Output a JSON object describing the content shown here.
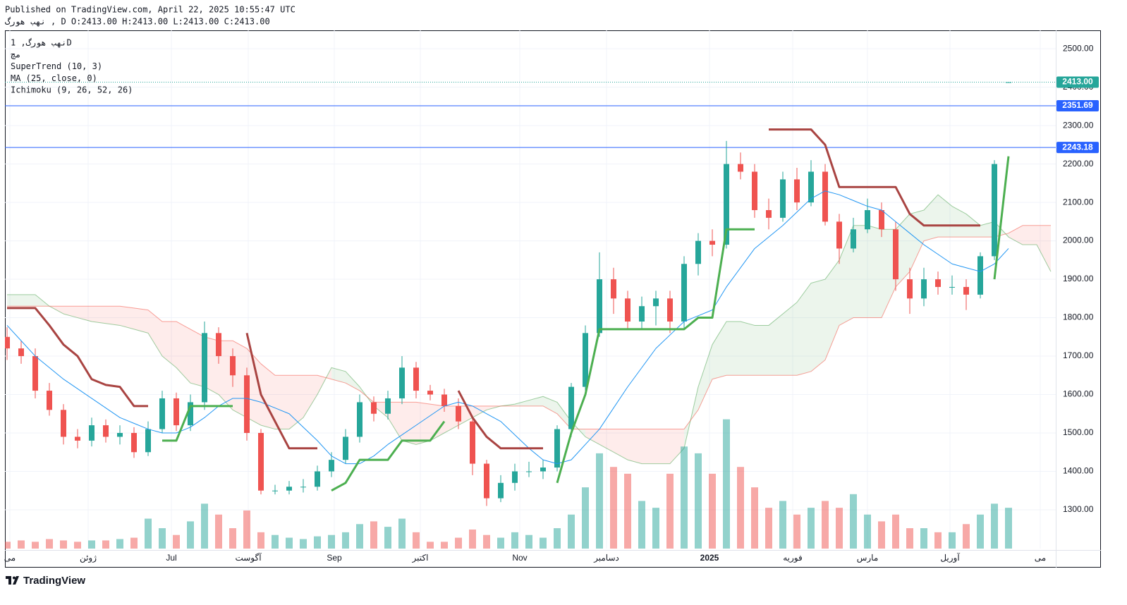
{
  "chart_data": {
    "type": "candlestick",
    "published": "Published on TradingView.com, April 22, 2025 10:55:47 UTC",
    "ohlc_line": "نهب هورگ  ,  D O:2413.00 H:2413.00 L:2413.00 C:2413.00",
    "legend": [
      "نهب هورگ, 1D",
      "مچ",
      "SuperTrend (10, 3)",
      "MA (25, close, 0)",
      "Ichimoku (9, 26, 52, 26)"
    ],
    "footer": "TradingView",
    "xlim": [
      -0.15,
      74.35
    ],
    "ylim": [
      1199,
      2548
    ],
    "volume_lim": [
      0,
      100
    ],
    "grid": true,
    "up_color": "#26a69a",
    "down_color": "#ef5350",
    "xticks": [
      {
        "value": 0.2,
        "label": "می"
      },
      {
        "value": 5.75,
        "label": "ژوئن"
      },
      {
        "value": 11.65,
        "label": "Jul"
      },
      {
        "value": 17.1,
        "label": "آگوست"
      },
      {
        "value": 23.2,
        "label": "Sep"
      },
      {
        "value": 29.3,
        "label": "اکتبر"
      },
      {
        "value": 36.35,
        "label": "Nov"
      },
      {
        "value": 42.5,
        "label": "دسامبر"
      },
      {
        "value": 49.8,
        "label": "2025",
        "bold": true
      },
      {
        "value": 55.7,
        "label": "فوریه"
      },
      {
        "value": 61,
        "label": "مارس"
      },
      {
        "value": 66.85,
        "label": "آوریل"
      },
      {
        "value": 73.25,
        "label": "می"
      }
    ],
    "yticks": [
      {
        "value": 1300,
        "label": "1300.00"
      },
      {
        "value": 1400,
        "label": "1400.00"
      },
      {
        "value": 1500,
        "label": "1500.00"
      },
      {
        "value": 1600,
        "label": "1600.00"
      },
      {
        "value": 1700,
        "label": "1700.00"
      },
      {
        "value": 1800,
        "label": "1800.00"
      },
      {
        "value": 1900,
        "label": "1900.00"
      },
      {
        "value": 2000,
        "label": "2000.00"
      },
      {
        "value": 2100,
        "label": "2100.00"
      },
      {
        "value": 2200,
        "label": "2200.00"
      },
      {
        "value": 2300,
        "label": "2300.00"
      },
      {
        "value": 2400,
        "label": "2400.00"
      },
      {
        "value": 2500,
        "label": "2500.00"
      }
    ],
    "price_lines": [
      {
        "value": 2413,
        "label": "2413.00",
        "color": "#26a69a",
        "dotted": true
      },
      {
        "value": 2351.69,
        "label": "2351.69",
        "color": "#2962ff",
        "dotted": false
      },
      {
        "value": 2243.18,
        "label": "2243.18",
        "color": "#2962ff",
        "dotted": false
      }
    ],
    "open": [
      1750,
      1720,
      1700,
      1610,
      1560,
      1490,
      1480,
      1520,
      1490,
      1500,
      1450,
      1510,
      1590,
      1520,
      1580,
      1760,
      1700,
      1650,
      1500,
      1350,
      1350,
      1360,
      1360,
      1400,
      1430,
      1490,
      1580,
      1550,
      1590,
      1670,
      1610,
      1600,
      1570,
      1530,
      1420,
      1330,
      1370,
      1400,
      1400,
      1410,
      1510,
      1620,
      1760,
      1900,
      1850,
      1790,
      1830,
      1850,
      1790,
      1940,
      2000,
      1990,
      2200,
      2180,
      2080,
      2060,
      2160,
      2100,
      2180,
      2050,
      1980,
      2030,
      2080,
      2030,
      1900,
      1850,
      1900,
      1880,
      1880,
      1860,
      1960,
      2413
    ],
    "high": [
      1775,
      1740,
      1720,
      1630,
      1575,
      1510,
      1540,
      1535,
      1520,
      1515,
      1530,
      1610,
      1605,
      1600,
      1790,
      1775,
      1720,
      1670,
      1510,
      1365,
      1375,
      1380,
      1415,
      1450,
      1510,
      1600,
      1595,
      1610,
      1700,
      1685,
      1625,
      1615,
      1590,
      1545,
      1430,
      1390,
      1420,
      1425,
      1430,
      1520,
      1630,
      1780,
      1970,
      1930,
      1870,
      1855,
      1870,
      1870,
      1960,
      2020,
      2030,
      2260,
      2230,
      2200,
      2110,
      2180,
      2190,
      2210,
      2200,
      2070,
      2060,
      2110,
      2100,
      2050,
      1930,
      1930,
      1920,
      1910,
      1900,
      1970,
      2210,
      2413
    ],
    "low": [
      1690,
      1680,
      1590,
      1545,
      1470,
      1460,
      1465,
      1475,
      1470,
      1435,
      1440,
      1500,
      1505,
      1505,
      1560,
      1680,
      1620,
      1480,
      1340,
      1340,
      1340,
      1345,
      1350,
      1385,
      1420,
      1475,
      1530,
      1535,
      1575,
      1590,
      1585,
      1555,
      1510,
      1390,
      1310,
      1320,
      1350,
      1385,
      1380,
      1400,
      1490,
      1610,
      1750,
      1810,
      1770,
      1770,
      1780,
      1760,
      1770,
      1910,
      1960,
      1980,
      2160,
      2060,
      2030,
      2050,
      2080,
      2090,
      2040,
      1940,
      1970,
      2020,
      2010,
      1870,
      1810,
      1830,
      1860,
      1860,
      1820,
      1850,
      1950,
      2413
    ],
    "close": [
      1720,
      1700,
      1610,
      1560,
      1490,
      1480,
      1520,
      1490,
      1500,
      1450,
      1510,
      1590,
      1520,
      1580,
      1760,
      1700,
      1650,
      1500,
      1350,
      1350,
      1360,
      1360,
      1400,
      1430,
      1490,
      1580,
      1550,
      1590,
      1670,
      1610,
      1600,
      1570,
      1530,
      1420,
      1330,
      1370,
      1400,
      1400,
      1410,
      1510,
      1620,
      1760,
      1900,
      1850,
      1790,
      1830,
      1850,
      1790,
      1940,
      2000,
      1990,
      2200,
      2180,
      2080,
      2060,
      2160,
      2100,
      2180,
      2050,
      1980,
      2030,
      2080,
      2030,
      1900,
      1850,
      1900,
      1880,
      1880,
      1860,
      1960,
      2200,
      2413
    ],
    "volume": [
      5,
      6,
      5,
      7,
      6,
      5,
      6,
      6,
      7,
      8,
      22,
      15,
      10,
      20,
      33,
      25,
      15,
      28,
      12,
      10,
      8,
      7,
      9,
      10,
      12,
      18,
      20,
      16,
      22,
      12,
      5,
      5,
      8,
      14,
      10,
      8,
      12,
      10,
      8,
      15,
      25,
      45,
      70,
      60,
      55,
      35,
      30,
      55,
      75,
      70,
      55,
      95,
      60,
      45,
      30,
      35,
      25,
      30,
      35,
      30,
      40,
      25,
      20,
      25,
      15,
      15,
      12,
      12,
      18,
      25,
      33,
      30
    ],
    "ma": {
      "color": "#2196f3",
      "values": [
        1780,
        1740,
        1700,
        1670,
        1640,
        1615,
        1590,
        1565,
        1540,
        1525,
        1510,
        1500,
        1500,
        1515,
        1540,
        1570,
        1590,
        1590,
        1580,
        1565,
        1550,
        1515,
        1480,
        1440,
        1420,
        1420,
        1440,
        1470,
        1495,
        1520,
        1545,
        1570,
        1580,
        1570,
        1550,
        1530,
        1495,
        1460,
        1430,
        1420,
        1430,
        1470,
        1510,
        1565,
        1620,
        1670,
        1720,
        1755,
        1790,
        1805,
        1820,
        1880,
        1930,
        1980,
        2010,
        2040,
        2075,
        2110,
        2130,
        2120,
        2105,
        2090,
        2080,
        2050,
        2020,
        1990,
        1965,
        1940,
        1930,
        1920,
        1940,
        1980
      ]
    },
    "supertrend_up": {
      "color": "#4caf50",
      "values": [
        null,
        null,
        null,
        null,
        null,
        null,
        null,
        null,
        null,
        null,
        null,
        1480,
        1480,
        1570,
        1570,
        1570,
        1570,
        null,
        null,
        null,
        null,
        null,
        null,
        1350,
        1370,
        1430,
        1430,
        1430,
        1480,
        1480,
        1480,
        1530,
        null,
        null,
        null,
        null,
        null,
        null,
        null,
        1370,
        1500,
        1600,
        1770,
        1770,
        1770,
        1770,
        1770,
        1770,
        1770,
        1800,
        1800,
        2030,
        2030,
        2030,
        null,
        null,
        null,
        null,
        null,
        null,
        null,
        null,
        null,
        null,
        null,
        null,
        null,
        null,
        null,
        null,
        1900,
        2220
      ]
    },
    "supertrend_down": {
      "color": "#a94442",
      "values": [
        1825,
        1825,
        1825,
        1780,
        1730,
        1700,
        1640,
        1625,
        1620,
        1570,
        1570,
        null,
        null,
        null,
        null,
        null,
        null,
        1760,
        1600,
        1530,
        1460,
        1460,
        1460,
        null,
        null,
        null,
        null,
        null,
        null,
        null,
        null,
        null,
        1610,
        1540,
        1490,
        1460,
        1460,
        1460,
        1460,
        null,
        null,
        null,
        null,
        null,
        null,
        null,
        null,
        null,
        null,
        null,
        null,
        null,
        null,
        null,
        2290,
        2290,
        2290,
        2290,
        2250,
        2140,
        2140,
        2140,
        2140,
        2140,
        2070,
        2040,
        2040,
        2040,
        2040,
        2040,
        null,
        null
      ]
    },
    "ichimoku": {
      "color_up": "#43a047",
      "color_down": "#f44336",
      "span_a": [
        1860,
        1860,
        1860,
        1830,
        1810,
        1800,
        1790,
        1785,
        1780,
        1770,
        1760,
        1700,
        1670,
        1630,
        1620,
        1600,
        1560,
        1540,
        1520,
        1510,
        1510,
        1540,
        1600,
        1670,
        1660,
        1620,
        1570,
        1540,
        1480,
        1470,
        1480,
        1500,
        1520,
        1540,
        1560,
        1570,
        1575,
        1585,
        1595,
        1580,
        1530,
        1490,
        1470,
        1450,
        1430,
        1420,
        1420,
        1420,
        1460,
        1620,
        1730,
        1790,
        1790,
        1780,
        1780,
        1810,
        1840,
        1890,
        1900,
        1950,
        2040,
        2040,
        2030,
        2030,
        2070,
        2080,
        2120,
        2090,
        2070,
        2040,
        2050,
        2010,
        1990,
        1990,
        1920
      ],
      "span_b": [
        1830,
        1830,
        1830,
        1830,
        1830,
        1830,
        1830,
        1830,
        1830,
        1825,
        1820,
        1790,
        1790,
        1770,
        1750,
        1740,
        1740,
        1720,
        1680,
        1650,
        1650,
        1650,
        1650,
        1640,
        1630,
        1610,
        1580,
        1580,
        1580,
        1580,
        1575,
        1570,
        1570,
        1570,
        1570,
        1570,
        1570,
        1570,
        1570,
        1550,
        1510,
        1510,
        1510,
        1510,
        1510,
        1510,
        1510,
        1510,
        1510,
        1560,
        1640,
        1650,
        1650,
        1650,
        1650,
        1650,
        1650,
        1660,
        1690,
        1780,
        1800,
        1800,
        1800,
        1880,
        1920,
        2000,
        2010,
        2010,
        2010,
        2010,
        2010,
        2020,
        2040,
        2040,
        2040
      ]
    }
  }
}
